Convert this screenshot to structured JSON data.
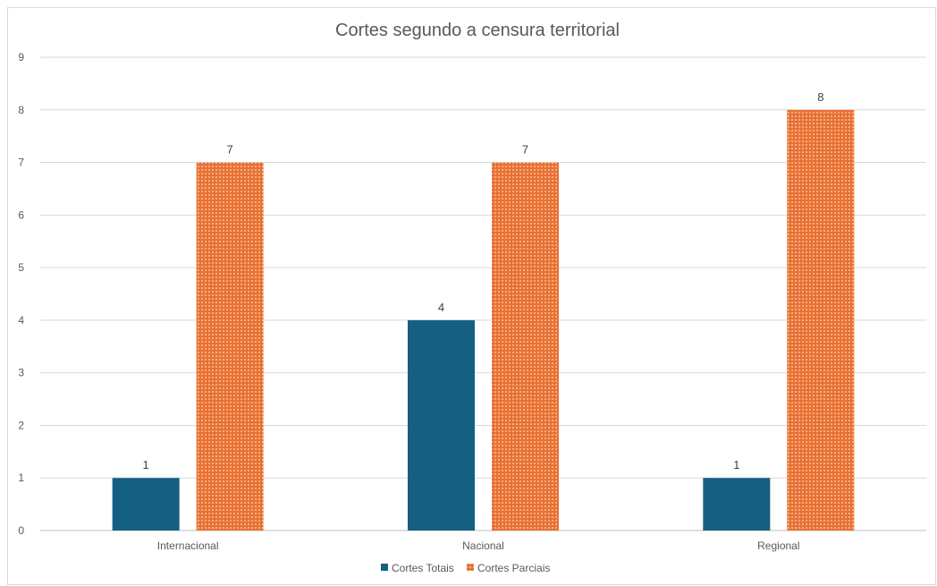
{
  "chart_data": {
    "type": "bar",
    "title": "Cortes segundo a censura territorial",
    "xlabel": "",
    "ylabel": "",
    "categories": [
      "Internacional",
      "Nacional",
      "Regional"
    ],
    "series": [
      {
        "name": "Cortes Totais",
        "values": [
          1,
          4,
          1
        ],
        "color": "#156082",
        "pattern": "solid"
      },
      {
        "name": "Cortes Parciais",
        "values": [
          7,
          7,
          8
        ],
        "color": "#e97132",
        "pattern": "dotted"
      }
    ],
    "ylim": [
      0,
      9
    ],
    "yticks": [
      0,
      1,
      2,
      3,
      4,
      5,
      6,
      7,
      8,
      9
    ],
    "grid": true,
    "legend_position": "bottom",
    "data_labels": true
  }
}
